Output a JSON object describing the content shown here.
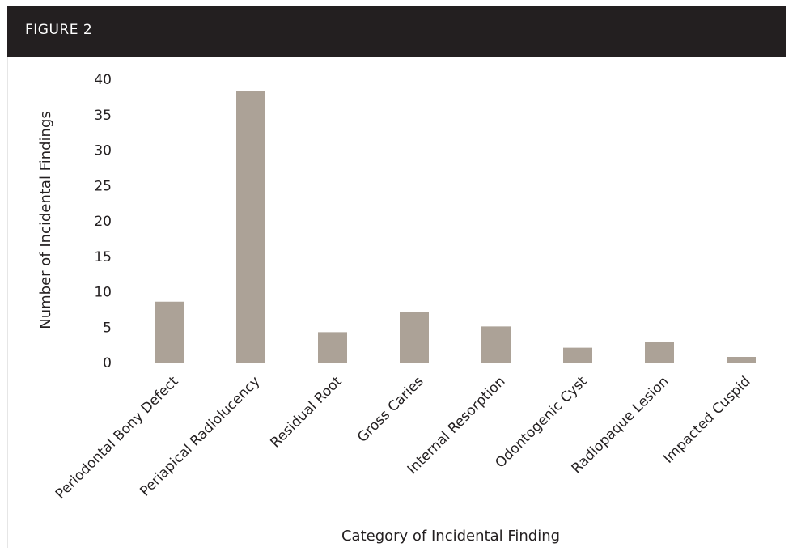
{
  "figure_label": "FIGURE 2",
  "chart_data": {
    "type": "bar",
    "categories": [
      "Periodontal Bony Defect",
      "Periapical Radiolucency",
      "Residual Root",
      "Gross Caries",
      "Internal Resorption",
      "Odontogenic Cyst",
      "Radiopaque Lesion",
      "Impacted Cuspid"
    ],
    "values": [
      8.6,
      38.3,
      4.3,
      7.1,
      5.1,
      2.1,
      2.9,
      0.8
    ],
    "xlabel": "Category of Incidental Finding",
    "ylabel": "Number of Incidental Findings",
    "ylim": [
      0,
      40
    ],
    "yticks": [
      0,
      5,
      10,
      15,
      20,
      25,
      30,
      35,
      40
    ],
    "grid": false,
    "bar_color": "#aca297"
  }
}
